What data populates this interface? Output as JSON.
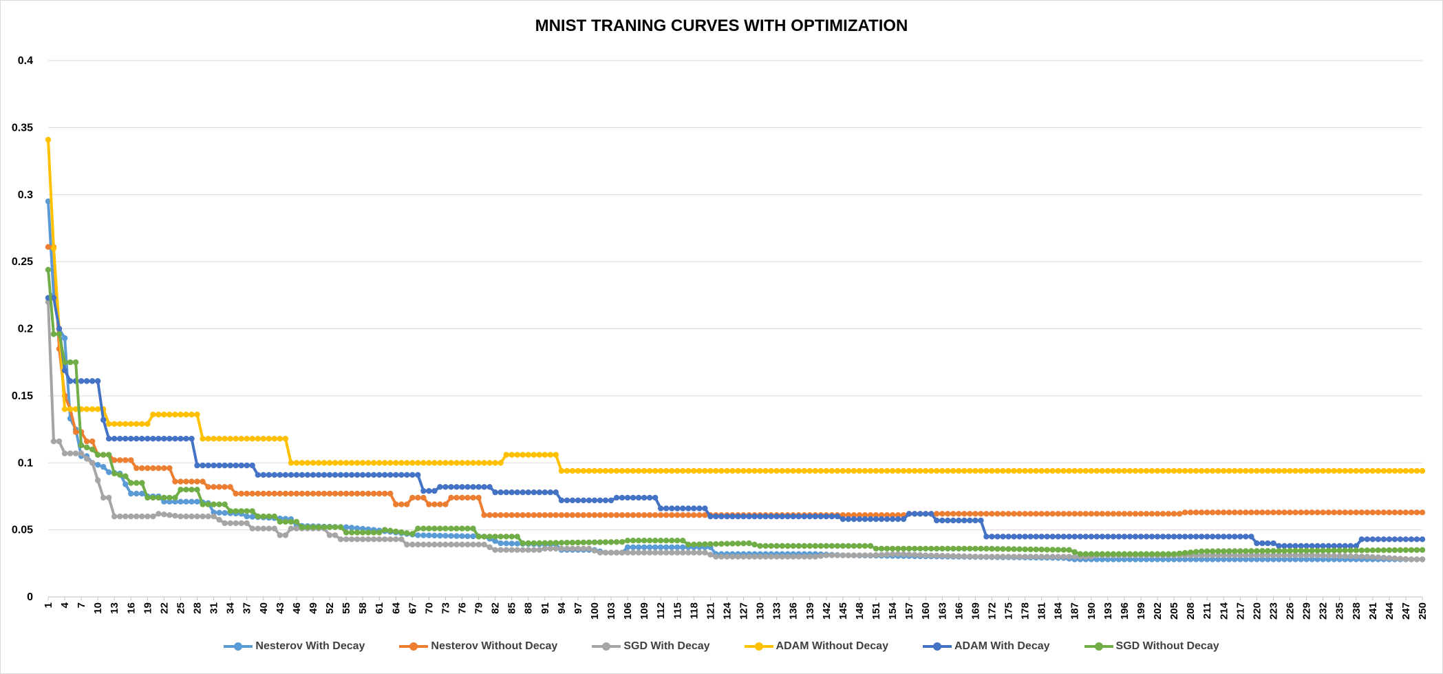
{
  "chart_data": {
    "type": "line",
    "title": "MNIST TRANING CURVES WITH OPTIMIZATION",
    "xlabel": "",
    "ylabel": "",
    "xlim": [
      1,
      250
    ],
    "ylim": [
      0,
      0.4
    ],
    "y_ticks": [
      "0",
      "0.05",
      "0.1",
      "0.15",
      "0.2",
      "0.25",
      "0.3",
      "0.35",
      "0.4"
    ],
    "x_ticks": [
      "1",
      "4",
      "7",
      "10",
      "13",
      "16",
      "19",
      "22",
      "25",
      "28",
      "31",
      "34",
      "37",
      "40",
      "43",
      "46",
      "49",
      "52",
      "55",
      "58",
      "61",
      "64",
      "67",
      "70",
      "73",
      "76",
      "79",
      "82",
      "85",
      "88",
      "91",
      "94",
      "97",
      "100",
      "103",
      "106",
      "109",
      "112",
      "115",
      "118",
      "121",
      "124",
      "127",
      "130",
      "133",
      "136",
      "139",
      "142",
      "145",
      "148",
      "151",
      "154",
      "157",
      "160",
      "163",
      "166",
      "169",
      "172",
      "175",
      "178",
      "181",
      "184",
      "187",
      "190",
      "193",
      "196",
      "199",
      "202",
      "205",
      "208",
      "211",
      "214",
      "217",
      "220",
      "223",
      "226",
      "229",
      "232",
      "235",
      "238",
      "241",
      "244",
      "247",
      "250"
    ],
    "grid": true,
    "legend_position": "bottom",
    "series": [
      {
        "name": "Nesterov With Decay",
        "color": "#5b9bd5",
        "points": [
          [
            1,
            0.295
          ],
          [
            2,
            0.225
          ],
          [
            3,
            0.2
          ],
          [
            4,
            0.193
          ],
          [
            5,
            0.133
          ],
          [
            6,
            0.125
          ],
          [
            7,
            0.105
          ],
          [
            8,
            0.105
          ],
          [
            9,
            0.1
          ],
          [
            11,
            0.097
          ],
          [
            12,
            0.093
          ],
          [
            14,
            0.092
          ],
          [
            15,
            0.084
          ],
          [
            16,
            0.077
          ],
          [
            18,
            0.077
          ],
          [
            19,
            0.075
          ],
          [
            21,
            0.075
          ],
          [
            22,
            0.071
          ],
          [
            28,
            0.071
          ],
          [
            30,
            0.07
          ],
          [
            31,
            0.063
          ],
          [
            36,
            0.062
          ],
          [
            37,
            0.06
          ],
          [
            45,
            0.058
          ],
          [
            46,
            0.053
          ],
          [
            55,
            0.052
          ],
          [
            60,
            0.05
          ],
          [
            68,
            0.046
          ],
          [
            80,
            0.045
          ],
          [
            83,
            0.04
          ],
          [
            93,
            0.039
          ],
          [
            94,
            0.035
          ],
          [
            100,
            0.035
          ],
          [
            102,
            0.033
          ],
          [
            105,
            0.033
          ],
          [
            106,
            0.037
          ],
          [
            121,
            0.037
          ],
          [
            122,
            0.032
          ],
          [
            140,
            0.032
          ],
          [
            145,
            0.031
          ],
          [
            165,
            0.03
          ],
          [
            185,
            0.029
          ],
          [
            187,
            0.028
          ],
          [
            250,
            0.028
          ]
        ]
      },
      {
        "name": "Nesterov Without Decay",
        "color": "#ed7d31",
        "points": [
          [
            1,
            0.261
          ],
          [
            2,
            0.261
          ],
          [
            3,
            0.185
          ],
          [
            4,
            0.15
          ],
          [
            5,
            0.14
          ],
          [
            6,
            0.123
          ],
          [
            7,
            0.123
          ],
          [
            8,
            0.116
          ],
          [
            9,
            0.116
          ],
          [
            10,
            0.106
          ],
          [
            12,
            0.106
          ],
          [
            13,
            0.102
          ],
          [
            16,
            0.102
          ],
          [
            17,
            0.096
          ],
          [
            23,
            0.096
          ],
          [
            24,
            0.086
          ],
          [
            29,
            0.086
          ],
          [
            30,
            0.082
          ],
          [
            34,
            0.082
          ],
          [
            35,
            0.077
          ],
          [
            63,
            0.077
          ],
          [
            64,
            0.069
          ],
          [
            66,
            0.069
          ],
          [
            67,
            0.074
          ],
          [
            69,
            0.074
          ],
          [
            70,
            0.069
          ],
          [
            73,
            0.069
          ],
          [
            74,
            0.074
          ],
          [
            79,
            0.074
          ],
          [
            80,
            0.061
          ],
          [
            156,
            0.061
          ],
          [
            157,
            0.062
          ],
          [
            206,
            0.062
          ],
          [
            207,
            0.063
          ],
          [
            250,
            0.063
          ]
        ]
      },
      {
        "name": "SGD With Decay",
        "color": "#a5a5a5",
        "points": [
          [
            1,
            0.22
          ],
          [
            2,
            0.116
          ],
          [
            3,
            0.116
          ],
          [
            4,
            0.107
          ],
          [
            7,
            0.107
          ],
          [
            8,
            0.103
          ],
          [
            9,
            0.1
          ],
          [
            10,
            0.087
          ],
          [
            11,
            0.074
          ],
          [
            12,
            0.074
          ],
          [
            13,
            0.06
          ],
          [
            20,
            0.06
          ],
          [
            21,
            0.062
          ],
          [
            25,
            0.06
          ],
          [
            31,
            0.06
          ],
          [
            33,
            0.055
          ],
          [
            37,
            0.055
          ],
          [
            38,
            0.051
          ],
          [
            42,
            0.051
          ],
          [
            43,
            0.046
          ],
          [
            44,
            0.046
          ],
          [
            45,
            0.051
          ],
          [
            51,
            0.051
          ],
          [
            52,
            0.046
          ],
          [
            53,
            0.046
          ],
          [
            54,
            0.043
          ],
          [
            62,
            0.043
          ],
          [
            65,
            0.043
          ],
          [
            66,
            0.039
          ],
          [
            80,
            0.039
          ],
          [
            82,
            0.035
          ],
          [
            90,
            0.035
          ],
          [
            91,
            0.036
          ],
          [
            99,
            0.036
          ],
          [
            101,
            0.033
          ],
          [
            120,
            0.033
          ],
          [
            122,
            0.03
          ],
          [
            140,
            0.03
          ],
          [
            142,
            0.031
          ],
          [
            150,
            0.031
          ],
          [
            155,
            0.032
          ],
          [
            160,
            0.031
          ],
          [
            170,
            0.03
          ],
          [
            190,
            0.03
          ],
          [
            191,
            0.031
          ],
          [
            230,
            0.031
          ],
          [
            240,
            0.03
          ],
          [
            248,
            0.028
          ],
          [
            250,
            0.028
          ]
        ]
      },
      {
        "name": "ADAM Without Decay",
        "color": "#ffc000",
        "points": [
          [
            1,
            0.341
          ],
          [
            2,
            0.26
          ],
          [
            3,
            0.2
          ],
          [
            4,
            0.14
          ],
          [
            11,
            0.14
          ],
          [
            12,
            0.129
          ],
          [
            19,
            0.129
          ],
          [
            20,
            0.136
          ],
          [
            28,
            0.136
          ],
          [
            29,
            0.118
          ],
          [
            44,
            0.118
          ],
          [
            45,
            0.1
          ],
          [
            83,
            0.1
          ],
          [
            84,
            0.106
          ],
          [
            93,
            0.106
          ],
          [
            94,
            0.094
          ],
          [
            250,
            0.094
          ]
        ]
      },
      {
        "name": "ADAM With Decay",
        "color": "#4472c4",
        "points": [
          [
            1,
            0.223
          ],
          [
            2,
            0.223
          ],
          [
            3,
            0.2
          ],
          [
            4,
            0.169
          ],
          [
            5,
            0.161
          ],
          [
            10,
            0.161
          ],
          [
            11,
            0.132
          ],
          [
            12,
            0.118
          ],
          [
            27,
            0.118
          ],
          [
            28,
            0.098
          ],
          [
            38,
            0.098
          ],
          [
            39,
            0.091
          ],
          [
            68,
            0.091
          ],
          [
            69,
            0.079
          ],
          [
            71,
            0.079
          ],
          [
            72,
            0.082
          ],
          [
            81,
            0.082
          ],
          [
            82,
            0.078
          ],
          [
            93,
            0.078
          ],
          [
            94,
            0.072
          ],
          [
            103,
            0.072
          ],
          [
            104,
            0.074
          ],
          [
            111,
            0.074
          ],
          [
            112,
            0.066
          ],
          [
            120,
            0.066
          ],
          [
            121,
            0.06
          ],
          [
            144,
            0.06
          ],
          [
            145,
            0.058
          ],
          [
            156,
            0.058
          ],
          [
            157,
            0.062
          ],
          [
            161,
            0.062
          ],
          [
            162,
            0.057
          ],
          [
            170,
            0.057
          ],
          [
            171,
            0.045
          ],
          [
            219,
            0.045
          ],
          [
            220,
            0.04
          ],
          [
            223,
            0.04
          ],
          [
            224,
            0.038
          ],
          [
            238,
            0.038
          ],
          [
            239,
            0.043
          ],
          [
            250,
            0.043
          ]
        ]
      },
      {
        "name": "SGD Without Decay",
        "color": "#70ad47",
        "points": [
          [
            1,
            0.244
          ],
          [
            2,
            0.196
          ],
          [
            3,
            0.196
          ],
          [
            4,
            0.175
          ],
          [
            6,
            0.175
          ],
          [
            7,
            0.113
          ],
          [
            9,
            0.11
          ],
          [
            10,
            0.106
          ],
          [
            12,
            0.106
          ],
          [
            13,
            0.092
          ],
          [
            15,
            0.09
          ],
          [
            16,
            0.085
          ],
          [
            18,
            0.085
          ],
          [
            19,
            0.074
          ],
          [
            24,
            0.074
          ],
          [
            25,
            0.08
          ],
          [
            28,
            0.08
          ],
          [
            29,
            0.069
          ],
          [
            33,
            0.069
          ],
          [
            34,
            0.064
          ],
          [
            38,
            0.064
          ],
          [
            39,
            0.06
          ],
          [
            42,
            0.06
          ],
          [
            43,
            0.056
          ],
          [
            46,
            0.056
          ],
          [
            47,
            0.052
          ],
          [
            54,
            0.052
          ],
          [
            55,
            0.048
          ],
          [
            61,
            0.048
          ],
          [
            62,
            0.05
          ],
          [
            67,
            0.047
          ],
          [
            68,
            0.051
          ],
          [
            78,
            0.051
          ],
          [
            79,
            0.045
          ],
          [
            86,
            0.045
          ],
          [
            87,
            0.04
          ],
          [
            105,
            0.041
          ],
          [
            106,
            0.042
          ],
          [
            116,
            0.042
          ],
          [
            117,
            0.039
          ],
          [
            128,
            0.04
          ],
          [
            130,
            0.038
          ],
          [
            150,
            0.038
          ],
          [
            151,
            0.036
          ],
          [
            163,
            0.036
          ],
          [
            170,
            0.036
          ],
          [
            186,
            0.035
          ],
          [
            188,
            0.032
          ],
          [
            205,
            0.032
          ],
          [
            210,
            0.034
          ],
          [
            250,
            0.035
          ]
        ]
      }
    ]
  }
}
